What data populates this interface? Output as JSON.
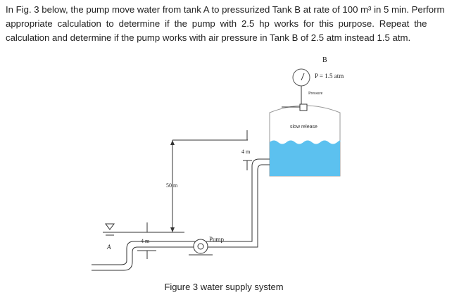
{
  "paragraph": {
    "lines": [
      "In Fig. 3 below, the pump move water from tank A to pressurized Tank B at rate of 100 m³ in 5 min. Perform",
      "appropriate calculation to determine if the pump with 2.5 hp works for this purpose. Repeat the",
      "calculation and determine if the pump works with air pressure in Tank B of 2.5 atm instead 1.5 atm."
    ]
  },
  "figure": {
    "tank_b_label": "B",
    "pressure_label": "P = 1.5 atm",
    "gauge_label": "Pressure",
    "valve_label": "slow release",
    "top_height_label": "4 m",
    "elevation_label": "50 m",
    "bottom_height_label": "4 m",
    "pump_label": "Pump",
    "tank_a_label": "A",
    "caption": "Figure 3 water supply system"
  }
}
